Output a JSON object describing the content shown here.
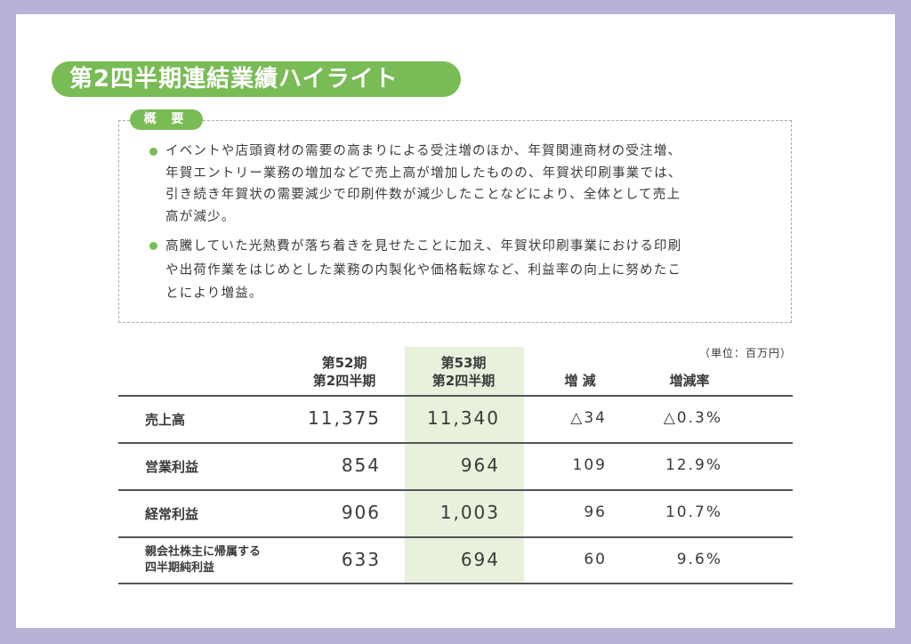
{
  "header": {
    "title": "第2四半期連結業績ハイライト"
  },
  "summary": {
    "label": "概 要",
    "bullets": [
      [
        "イベントや店頭資材の需要の高まりによる受注増のほか、年賀関連商材の受注増、",
        "年賀エントリー業務の増加などで売上高が増加したものの、年賀状印刷事業では、",
        "引き続き年賀状の需要減少で印刷件数が減少したことなどにより、全体として売上",
        "高が減少。"
      ],
      [
        "高騰していた光熱費が落ち着きを見せたことに加え、年賀状印刷事業における印刷",
        "や出荷作業をはじめとした業務の内製化や価格転嫁など、利益率の向上に努めたこ",
        "とにより増益。"
      ]
    ]
  },
  "table": {
    "unit": "（単位：百万円）",
    "columns": [
      [
        "第52期",
        "第2四半期"
      ],
      [
        "第53期",
        "第2四半期"
      ],
      [
        "増 減"
      ],
      [
        "増減率"
      ]
    ],
    "rows": [
      {
        "label": [
          "売上高"
        ],
        "cells": [
          "11,375",
          "11,340",
          "△34",
          "△0.3%"
        ]
      },
      {
        "label": [
          "営業利益"
        ],
        "cells": [
          "854",
          "964",
          "109",
          "12.9%"
        ]
      },
      {
        "label": [
          "経常利益"
        ],
        "cells": [
          "906",
          "1,003",
          "96",
          "10.7%"
        ]
      },
      {
        "label": [
          "親会社株主に帰属する",
          "四半期純利益"
        ],
        "cells": [
          "633",
          "694",
          "60",
          "9.6%"
        ]
      }
    ]
  }
}
